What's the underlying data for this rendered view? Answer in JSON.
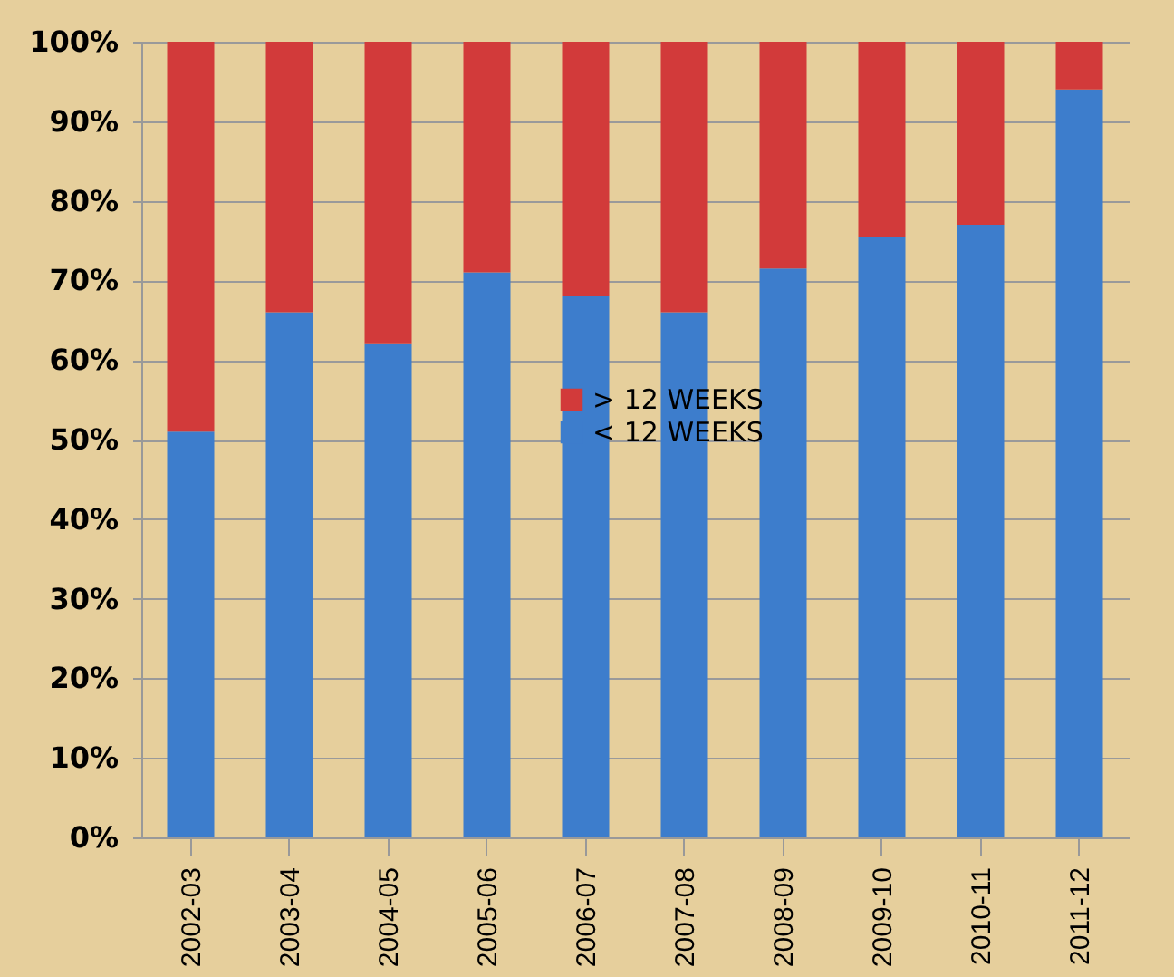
{
  "chart_data": {
    "type": "bar",
    "stacked": true,
    "categories": [
      "2002-03",
      "2003-04",
      "2004-05",
      "2005-06",
      "2006-07",
      "2007-08",
      "2008-09",
      "2009-10",
      "2010-11",
      "2011-12"
    ],
    "series": [
      {
        "name": "< 12 WEEKS",
        "color": "#3d7dcc",
        "values": [
          51,
          66,
          62,
          71,
          68,
          66,
          71.5,
          75.5,
          77,
          94
        ]
      },
      {
        "name": "> 12 WEEKS",
        "color": "#d23a3a",
        "values": [
          49,
          34,
          38,
          29,
          32,
          34,
          28.5,
          24.5,
          23,
          6
        ]
      }
    ],
    "ylim": [
      0,
      100
    ],
    "yticks": [
      {
        "value": 0,
        "label": "0%"
      },
      {
        "value": 10,
        "label": "10%"
      },
      {
        "value": 20,
        "label": "20%"
      },
      {
        "value": 30,
        "label": "30%"
      },
      {
        "value": 40,
        "label": "40%"
      },
      {
        "value": 50,
        "label": "50%"
      },
      {
        "value": 60,
        "label": "60%"
      },
      {
        "value": 70,
        "label": "70%"
      },
      {
        "value": 80,
        "label": "80%"
      },
      {
        "value": 90,
        "label": "90%"
      },
      {
        "value": 100,
        "label": "100%"
      }
    ],
    "grid": "y",
    "legend": "center"
  }
}
